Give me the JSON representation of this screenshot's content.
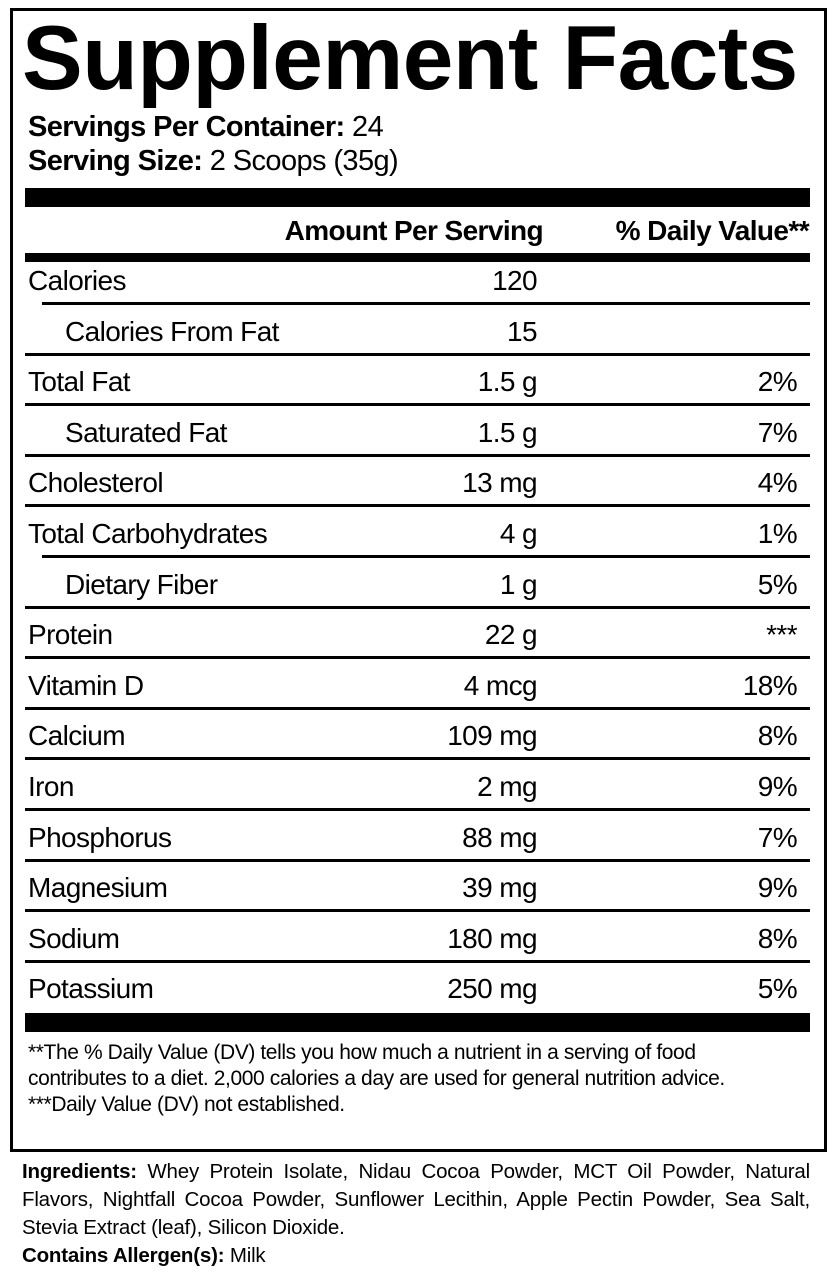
{
  "title": "Supplement Facts",
  "servings_per_container": {
    "label": "Servings Per Container:",
    "value": "24"
  },
  "serving_size": {
    "label": "Serving Size:",
    "value": "2 Scoops (35g)"
  },
  "header": {
    "amount": "Amount Per Serving",
    "daily_value": "% Daily Value**"
  },
  "rows": [
    {
      "name": "Calories",
      "amount": "120",
      "dv": ""
    },
    {
      "name": "Calories From Fat",
      "amount": "15",
      "dv": ""
    },
    {
      "name": "Total Fat",
      "amount": "1.5 g",
      "dv": "2%"
    },
    {
      "name": "Saturated Fat",
      "amount": "1.5 g",
      "dv": "7%"
    },
    {
      "name": "Cholesterol",
      "amount": "13 mg",
      "dv": "4%"
    },
    {
      "name": "Total Carbohydrates",
      "amount": "4 g",
      "dv": "1%"
    },
    {
      "name": "Dietary Fiber",
      "amount": "1 g",
      "dv": "5%"
    },
    {
      "name": "Protein",
      "amount": "22 g",
      "dv": "***"
    },
    {
      "name": "Vitamin D",
      "amount": "4 mcg",
      "dv": "18%"
    },
    {
      "name": "Calcium",
      "amount": "109 mg",
      "dv": "8%"
    },
    {
      "name": "Iron",
      "amount": "2 mg",
      "dv": "9%"
    },
    {
      "name": "Phosphorus",
      "amount": "88 mg",
      "dv": "7%"
    },
    {
      "name": "Magnesium",
      "amount": "39 mg",
      "dv": "9%"
    },
    {
      "name": "Sodium",
      "amount": "180 mg",
      "dv": "8%"
    },
    {
      "name": "Potassium",
      "amount": "250 mg",
      "dv": "5%"
    }
  ],
  "footnotes": {
    "dv_note": "**The % Daily Value (DV) tells you how much a nutrient in a serving of food contributes to a diet. 2,000 calories a day are used for general nutrition advice.",
    "not_established": "***Daily Value (DV) not established."
  },
  "ingredients": {
    "label": "Ingredients:",
    "text": "Whey Protein Isolate, Nidau Cocoa Powder, MCT Oil Powder, Natural Flavors, Nightfall Cocoa Powder, Sunflower Lecithin, Apple Pectin Powder, Sea Salt, Stevia Extract (leaf), Silicon Dioxide."
  },
  "allergens": {
    "label": "Contains Allergen(s):",
    "value": "Milk"
  }
}
